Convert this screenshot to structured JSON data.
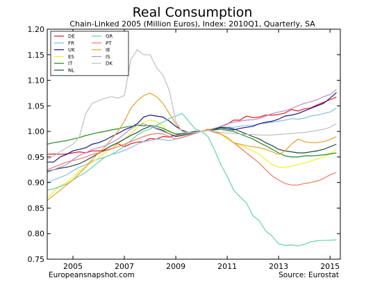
{
  "chart_data": {
    "type": "line",
    "title": "Real Consumption",
    "subtitle": "Chain-Linked 2005 (Million Euros), Index: 2010Q1, Quarterly, SA",
    "xlabel": "",
    "ylabel": "",
    "xlim": [
      2004.0,
      2015.4
    ],
    "ylim": [
      0.75,
      1.2
    ],
    "x_ticks": [
      "2005",
      "2007",
      "2009",
      "2011",
      "2013",
      "2015"
    ],
    "y_ticks": [
      "0.75",
      "0.80",
      "0.85",
      "0.90",
      "0.95",
      "1.00",
      "1.05",
      "1.10",
      "1.15",
      "1.20"
    ],
    "grid": false,
    "legend_position": "top-left",
    "x_quarters": [
      "2004Q1",
      "2004Q2",
      "2004Q3",
      "2004Q4",
      "2005Q1",
      "2005Q2",
      "2005Q3",
      "2005Q4",
      "2006Q1",
      "2006Q2",
      "2006Q3",
      "2006Q4",
      "2007Q1",
      "2007Q2",
      "2007Q3",
      "2007Q4",
      "2008Q1",
      "2008Q2",
      "2008Q3",
      "2008Q4",
      "2009Q1",
      "2009Q2",
      "2009Q3",
      "2009Q4",
      "2010Q1",
      "2010Q2",
      "2010Q3",
      "2010Q4",
      "2011Q1",
      "2011Q2",
      "2011Q3",
      "2011Q4",
      "2012Q1",
      "2012Q2",
      "2012Q3",
      "2012Q4",
      "2013Q1",
      "2013Q2",
      "2013Q3",
      "2013Q4",
      "2014Q1",
      "2014Q2",
      "2014Q3",
      "2014Q4",
      "2015Q1",
      "2015Q2"
    ],
    "series": [
      {
        "name": "DE",
        "color": "#e8141c",
        "values": [
          0.955,
          0.956,
          0.955,
          0.956,
          0.958,
          0.96,
          0.958,
          0.962,
          0.962,
          0.963,
          0.966,
          0.976,
          0.97,
          0.976,
          0.979,
          0.98,
          0.986,
          0.985,
          0.99,
          0.989,
          0.993,
          0.996,
          0.998,
          0.998,
          1.0,
          1.002,
          1.005,
          1.01,
          1.014,
          1.022,
          1.022,
          1.03,
          1.027,
          1.028,
          1.032,
          1.032,
          1.033,
          1.036,
          1.043,
          1.04,
          1.044,
          1.046,
          1.052,
          1.057,
          1.062,
          1.067
        ]
      },
      {
        "name": "FR",
        "color": "#8ab9e8",
        "values": [
          0.9,
          0.905,
          0.91,
          0.915,
          0.923,
          0.93,
          0.935,
          0.942,
          0.946,
          0.95,
          0.955,
          0.958,
          0.963,
          0.968,
          0.975,
          0.98,
          0.982,
          0.985,
          0.984,
          0.982,
          0.985,
          0.988,
          0.993,
          0.997,
          1.0,
          1.003,
          1.006,
          1.008,
          1.008,
          1.008,
          1.01,
          1.012,
          1.012,
          1.015,
          1.016,
          1.018,
          1.02,
          1.022,
          1.025,
          1.024,
          1.026,
          1.03,
          1.032,
          1.035,
          1.038,
          1.046
        ]
      },
      {
        "name": "UK",
        "color": "#14148c",
        "values": [
          0.94,
          0.94,
          0.95,
          0.955,
          0.962,
          0.965,
          0.968,
          0.975,
          0.978,
          0.983,
          0.99,
          0.996,
          1.003,
          1.008,
          1.015,
          1.028,
          1.032,
          1.03,
          1.028,
          1.02,
          1.01,
          1.002,
          0.998,
          1.0,
          1.0,
          1.002,
          1.004,
          1.007,
          1.005,
          1.003,
          1.006,
          1.008,
          1.01,
          1.015,
          1.018,
          1.02,
          1.024,
          1.03,
          1.032,
          1.035,
          1.04,
          1.045,
          1.05,
          1.055,
          1.065,
          1.076
        ]
      },
      {
        "name": "ES",
        "color": "#f2f21e",
        "values": [
          0.87,
          0.882,
          0.893,
          0.9,
          0.91,
          0.922,
          0.932,
          0.94,
          0.948,
          0.958,
          0.966,
          0.975,
          0.985,
          0.995,
          1.008,
          1.018,
          1.022,
          1.02,
          1.01,
          0.998,
          0.99,
          0.992,
          0.995,
          0.998,
          1.0,
          1.005,
          1.0,
          0.995,
          0.985,
          0.978,
          0.972,
          0.968,
          0.962,
          0.955,
          0.945,
          0.935,
          0.93,
          0.93,
          0.932,
          0.935,
          0.938,
          0.942,
          0.946,
          0.95,
          0.956,
          0.964
        ]
      },
      {
        "name": "IT",
        "color": "#1e8c1e",
        "values": [
          0.975,
          0.978,
          0.98,
          0.982,
          0.985,
          0.988,
          0.992,
          0.995,
          0.998,
          1.0,
          1.003,
          1.005,
          1.008,
          1.01,
          1.012,
          1.011,
          1.012,
          1.01,
          1.006,
          1.0,
          0.995,
          0.996,
          0.998,
          0.999,
          1.0,
          1.002,
          1.003,
          1.004,
          1.002,
          1.0,
          0.995,
          0.99,
          0.985,
          0.978,
          0.972,
          0.965,
          0.958,
          0.952,
          0.95,
          0.95,
          0.952,
          0.952,
          0.953,
          0.954,
          0.956,
          0.958
        ]
      },
      {
        "name": "NL",
        "color": "#1e4646",
        "values": [
          0.922,
          0.925,
          0.928,
          0.93,
          0.933,
          0.937,
          0.943,
          0.95,
          0.957,
          0.965,
          0.972,
          0.978,
          0.985,
          0.992,
          0.998,
          1.005,
          1.01,
          1.006,
          1.002,
          0.995,
          0.99,
          0.992,
          0.995,
          0.998,
          1.0,
          1.003,
          1.005,
          1.008,
          1.008,
          1.005,
          1.0,
          0.995,
          0.99,
          0.985,
          0.978,
          0.972,
          0.965,
          0.962,
          0.96,
          0.958,
          0.958,
          0.96,
          0.962,
          0.965,
          0.97,
          0.975
        ]
      },
      {
        "name": "GR",
        "color": "#64d2aa",
        "values": [
          0.885,
          0.888,
          0.892,
          0.897,
          0.905,
          0.913,
          0.92,
          0.93,
          0.94,
          0.95,
          0.955,
          0.962,
          0.972,
          0.982,
          0.993,
          1.0,
          1.005,
          1.012,
          1.018,
          1.025,
          1.03,
          1.035,
          1.02,
          1.005,
          1.0,
          0.99,
          0.965,
          0.935,
          0.912,
          0.885,
          0.872,
          0.86,
          0.835,
          0.825,
          0.805,
          0.795,
          0.78,
          0.777,
          0.778,
          0.776,
          0.779,
          0.784,
          0.786,
          0.787,
          0.787,
          0.788
        ]
      },
      {
        "name": "PT",
        "color": "#f07864",
        "values": [
          0.925,
          0.93,
          0.935,
          0.94,
          0.943,
          0.946,
          0.95,
          0.955,
          0.958,
          0.962,
          0.966,
          0.97,
          0.975,
          0.98,
          0.985,
          0.99,
          0.994,
          0.996,
          0.995,
          0.99,
          0.985,
          0.988,
          0.992,
          0.996,
          1.0,
          1.004,
          1.0,
          0.995,
          0.988,
          0.978,
          0.968,
          0.958,
          0.948,
          0.938,
          0.925,
          0.913,
          0.905,
          0.898,
          0.895,
          0.895,
          0.898,
          0.9,
          0.903,
          0.908,
          0.915,
          0.92
        ]
      },
      {
        "name": "IE",
        "color": "#e6a028",
        "values": [
          0.865,
          0.875,
          0.885,
          0.895,
          0.905,
          0.918,
          0.93,
          0.945,
          0.958,
          0.97,
          0.985,
          1.0,
          1.02,
          1.045,
          1.06,
          1.07,
          1.075,
          1.068,
          1.055,
          1.035,
          1.015,
          1.0,
          0.998,
          0.998,
          1.0,
          1.002,
          0.998,
          0.995,
          0.988,
          0.978,
          0.975,
          0.972,
          0.97,
          0.968,
          0.965,
          0.96,
          0.955,
          0.962,
          0.975,
          0.985,
          0.98,
          0.978,
          0.978,
          0.98,
          0.984,
          0.99
        ]
      },
      {
        "name": "IS",
        "color": "#b48cc8",
        "values": [
          0.92,
          0.925,
          0.93,
          0.935,
          0.945,
          0.953,
          0.958,
          0.965,
          0.968,
          0.972,
          0.978,
          0.985,
          0.995,
          1.005,
          1.012,
          1.015,
          1.01,
          1.005,
          1.0,
          0.995,
          0.992,
          0.994,
          0.997,
          0.998,
          1.0,
          1.002,
          1.006,
          1.01,
          1.015,
          1.018,
          1.02,
          1.022,
          1.023,
          1.025,
          1.03,
          1.035,
          1.038,
          1.04,
          1.045,
          1.05,
          1.055,
          1.058,
          1.062,
          1.068,
          1.072,
          1.082
        ]
      },
      {
        "name": "DK",
        "color": "#bebebe",
        "values": [
          0.945,
          0.952,
          0.96,
          0.968,
          0.975,
          0.99,
          1.035,
          1.055,
          1.06,
          1.065,
          1.068,
          1.065,
          1.07,
          1.14,
          1.16,
          1.15,
          1.15,
          1.125,
          1.11,
          1.08,
          1.02,
          1.0,
          0.998,
          0.998,
          1.0,
          1.002,
          1.0,
          0.998,
          0.997,
          0.996,
          0.995,
          0.994,
          0.994,
          0.993,
          0.993,
          0.993,
          0.994,
          0.995,
          0.996,
          0.997,
          0.998,
          1.0,
          1.002,
          1.004,
          1.008,
          1.015
        ]
      }
    ]
  },
  "footer": {
    "source_left": "Europeansnapshot.com",
    "source_right": "Source: Eurostat"
  }
}
